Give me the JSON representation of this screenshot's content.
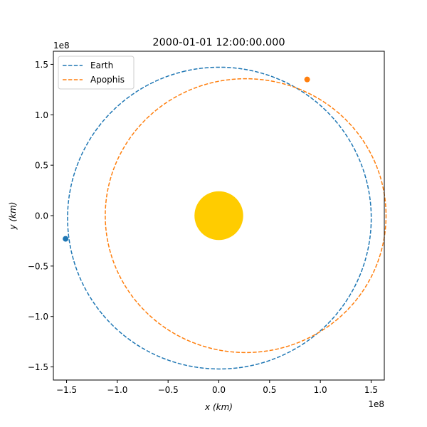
{
  "chart_data": {
    "type": "line",
    "title": "2000-01-01 12:00:00.000",
    "xlabel": "x (km)",
    "ylabel": "y (km)",
    "x_offset_text": "1e8",
    "y_offset_text": "1e8",
    "xlim": [
      -1.63,
      1.63
    ],
    "ylim": [
      -1.63,
      1.63
    ],
    "xticks": [
      -1.5,
      -1.0,
      -0.5,
      0.0,
      0.5,
      1.0,
      1.5
    ],
    "xtick_labels": [
      "−1.5",
      "−1.0",
      "−0.5",
      "0.0",
      "0.5",
      "1.0",
      "1.5"
    ],
    "yticks": [
      -1.5,
      -1.0,
      -0.5,
      0.0,
      0.5,
      1.0,
      1.5
    ],
    "ytick_labels": [
      "−1.5",
      "−1.0",
      "−0.5",
      "0.0",
      "0.5",
      "1.0",
      "1.5"
    ],
    "grid": false,
    "legend_position": "upper-left",
    "sun": {
      "x": 0.0,
      "y": 0.0,
      "radius": 0.24,
      "color": "#FFCC00"
    },
    "series": [
      {
        "name": "Earth",
        "color": "#1f77b4",
        "style": "dashed",
        "orbit": {
          "semi_major_axis": 1.496,
          "eccentricity": 0.0167,
          "perihelion_angle_deg": 102.9
        },
        "position": {
          "x": -1.51,
          "y": -0.23
        }
      },
      {
        "name": "Apophis",
        "color": "#ff7f0e",
        "style": "dashed",
        "orbit": {
          "semi_major_axis": 1.383,
          "eccentricity": 0.191,
          "perihelion_angle_deg": 180.0
        },
        "position": {
          "x": 0.87,
          "y": 1.35
        }
      }
    ]
  }
}
